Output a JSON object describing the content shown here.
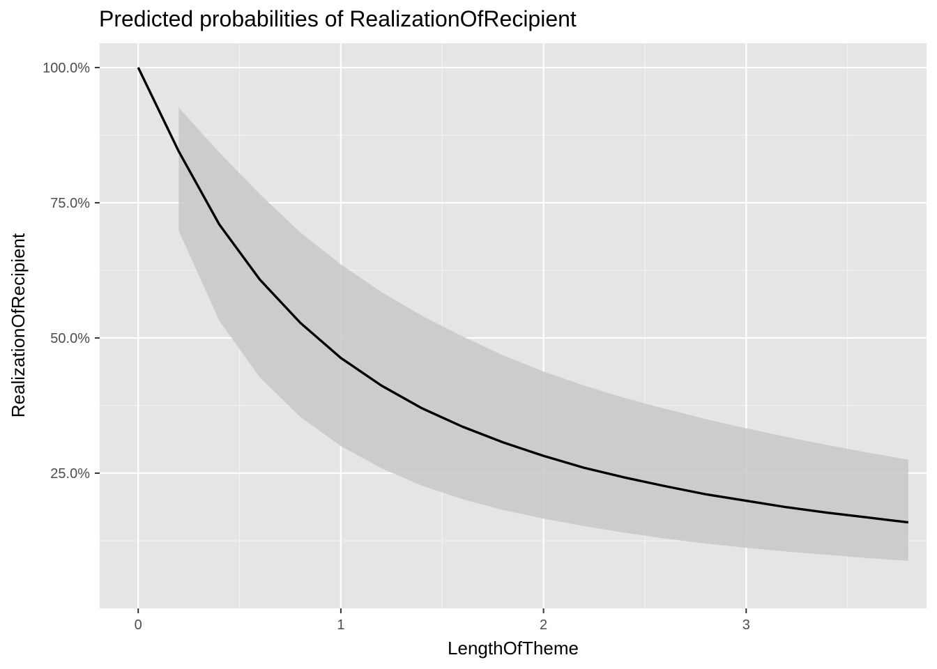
{
  "chart_data": {
    "type": "line",
    "title": "Predicted probabilities of RealizationOfRecipient",
    "xlabel": "LengthOfTheme",
    "ylabel": "RealizationOfRecipient",
    "xlim": [
      -0.19,
      3.89
    ],
    "ylim": [
      0.0,
      1.045
    ],
    "x_ticks": [
      0,
      1,
      2,
      3
    ],
    "x_tick_labels": [
      "0",
      "1",
      "2",
      "3"
    ],
    "y_ticks": [
      0.25,
      0.5,
      0.75,
      1.0
    ],
    "y_tick_labels": [
      "25.0%",
      "50.0%",
      "75.0%",
      "100.0%"
    ],
    "grid": true,
    "legend": "none",
    "series": [
      {
        "x": [
          0,
          0.2,
          0.4,
          0.6,
          0.8,
          1.0,
          1.2,
          1.4,
          1.6,
          1.8,
          2.0,
          2.2,
          2.4,
          2.6,
          2.8,
          3.0,
          3.2,
          3.4,
          3.6,
          3.8
        ],
        "values": [
          1.0,
          0.845,
          0.71,
          0.608,
          0.528,
          0.463,
          0.412,
          0.37,
          0.336,
          0.307,
          0.282,
          0.26,
          0.242,
          0.226,
          0.211,
          0.199,
          0.187,
          0.177,
          0.168,
          0.159
        ]
      }
    ],
    "ribbon": {
      "x": [
        0.2,
        0.4,
        0.6,
        0.8,
        1.0,
        1.2,
        1.4,
        1.6,
        1.8,
        2.0,
        2.2,
        2.4,
        2.6,
        2.8,
        3.0,
        3.2,
        3.4,
        3.6,
        3.8
      ],
      "lower": [
        0.698,
        0.532,
        0.427,
        0.354,
        0.3,
        0.259,
        0.227,
        0.202,
        0.182,
        0.166,
        0.152,
        0.14,
        0.129,
        0.12,
        0.112,
        0.105,
        0.099,
        0.093,
        0.088
      ],
      "upper": [
        0.926,
        0.843,
        0.766,
        0.695,
        0.636,
        0.585,
        0.541,
        0.503,
        0.468,
        0.438,
        0.412,
        0.389,
        0.369,
        0.35,
        0.333,
        0.317,
        0.302,
        0.288,
        0.275
      ]
    },
    "colors": {
      "panel_background": "#e5e5e5",
      "grid_major": "#ffffff",
      "grid_minor": "#f2f2f2",
      "line": "#000000",
      "ribbon": "#c8c8c8",
      "tick": "#333333"
    }
  }
}
